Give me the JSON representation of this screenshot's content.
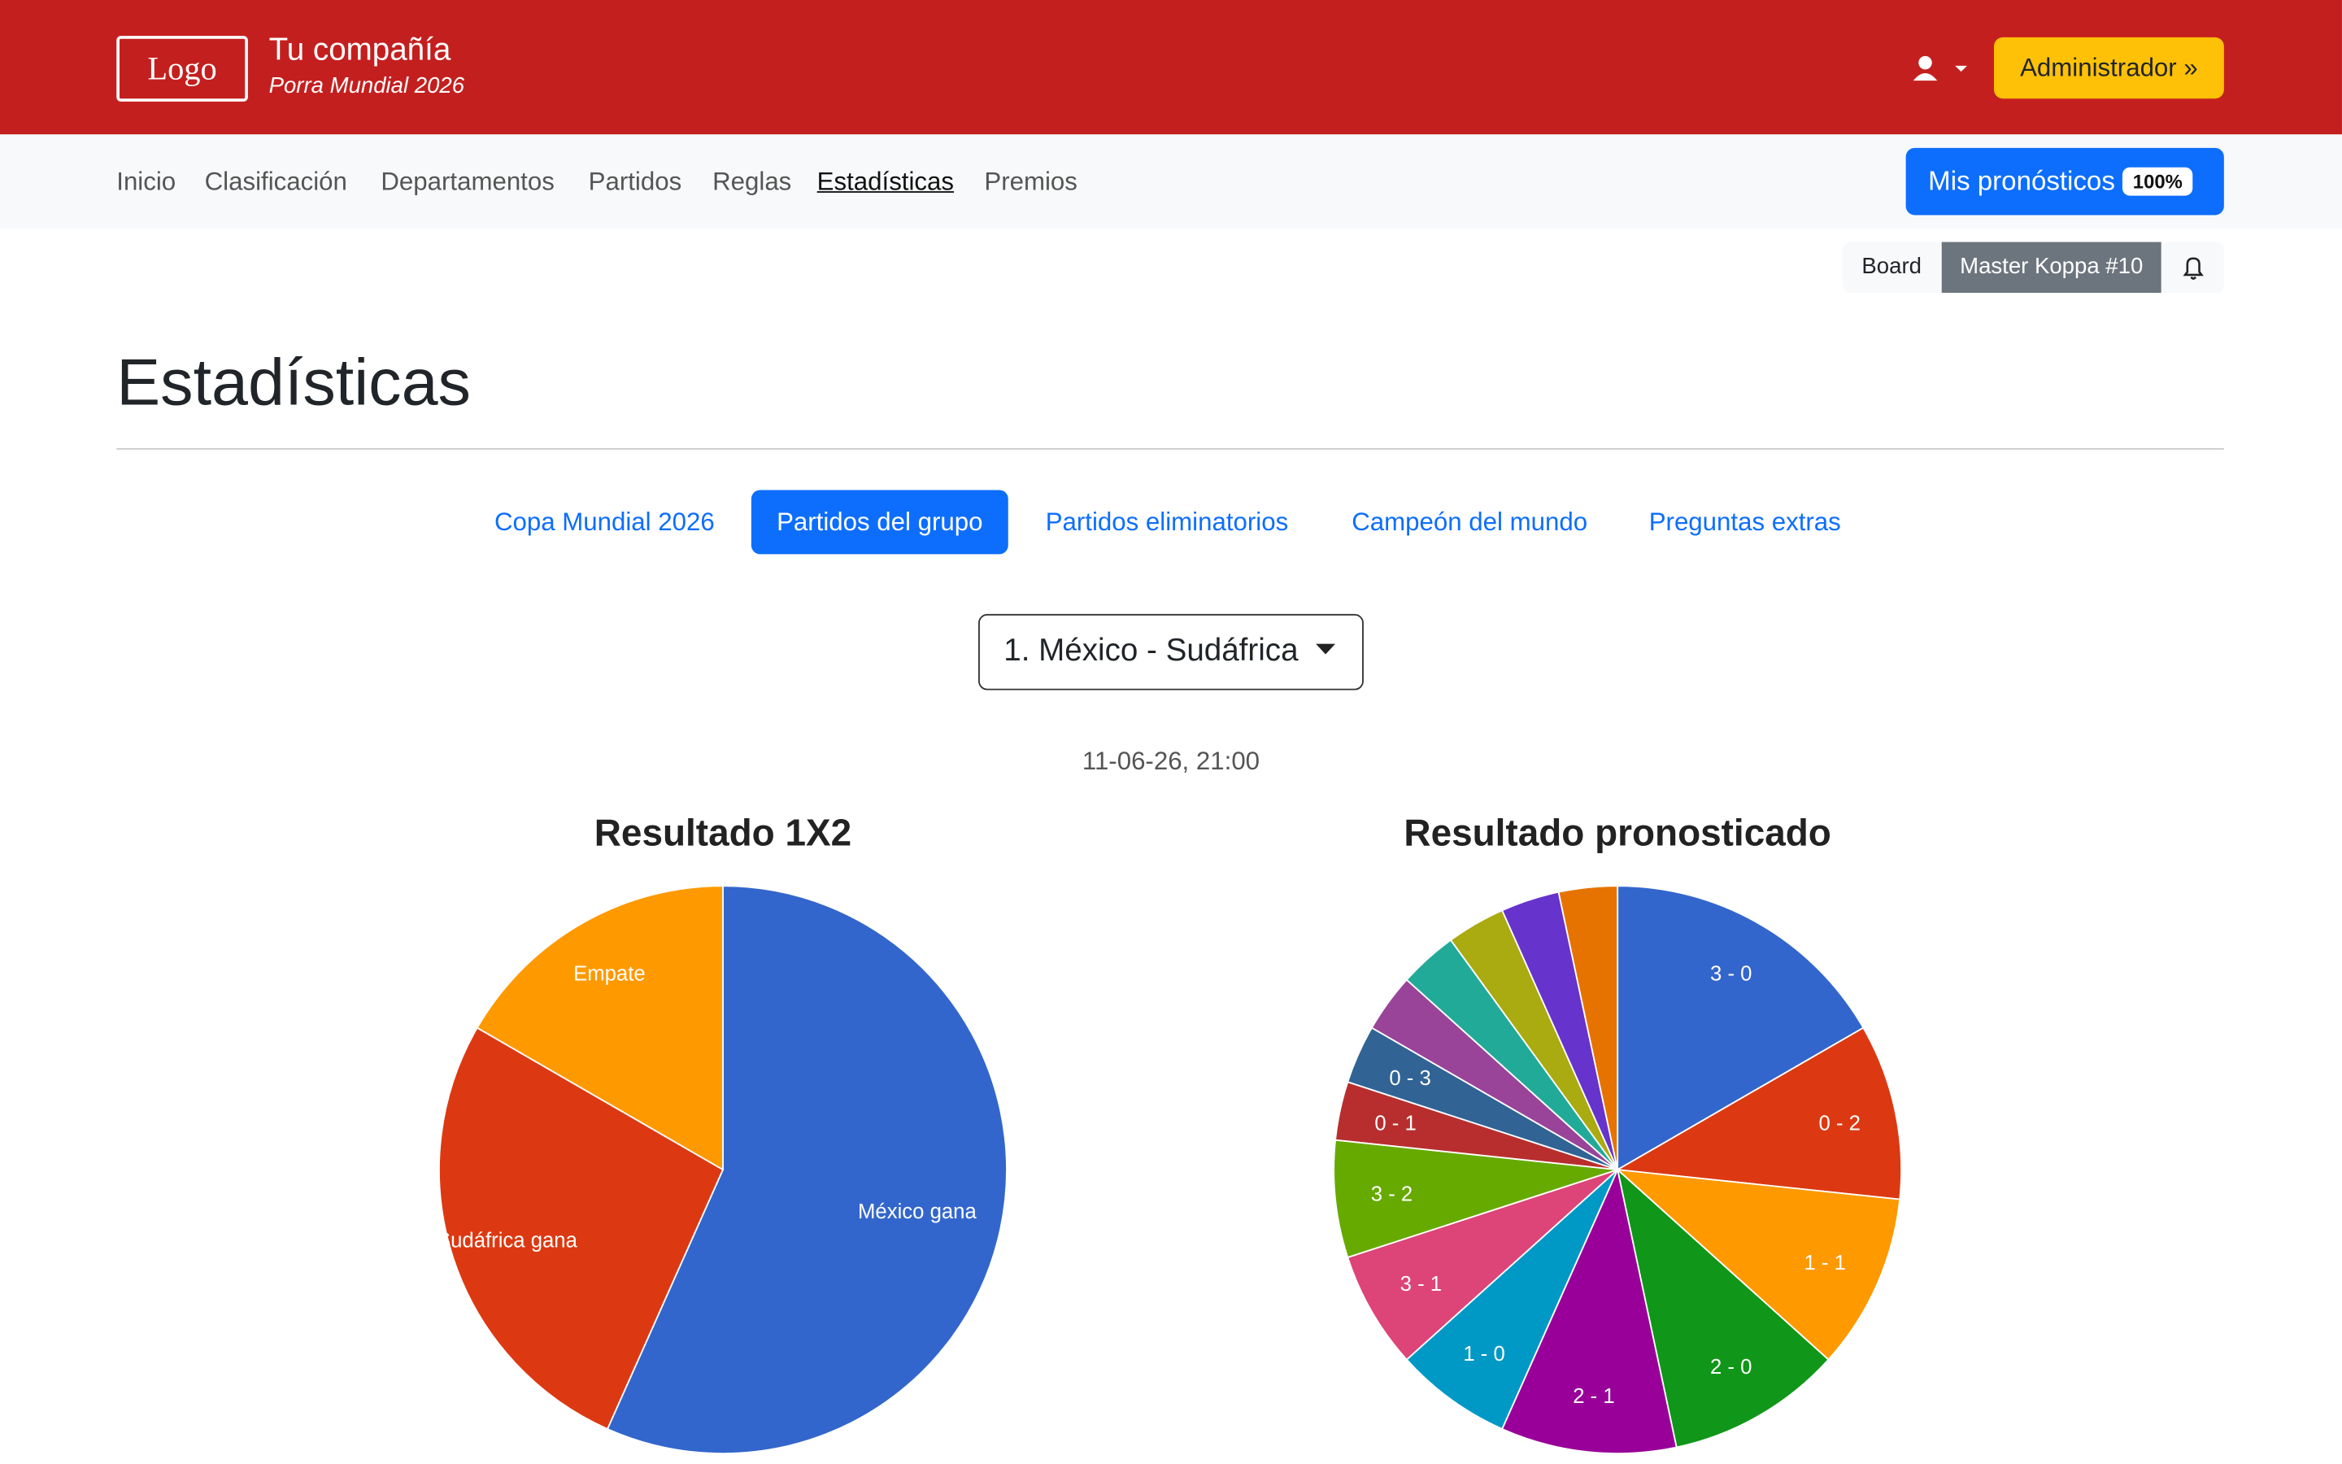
{
  "header": {
    "logo": "Logo",
    "company": "Tu compañía",
    "subtitle": "Porra Mundial 2026",
    "admin_button": "Administrador »"
  },
  "nav": {
    "links": [
      "Inicio",
      "Clasificación",
      "Departamentos",
      "Partidos",
      "Reglas",
      "Estadísticas",
      "Premios"
    ],
    "my_predictions": "Mis pronósticos",
    "badge": "100%"
  },
  "toolbar": {
    "board": "Board",
    "user": "Master Koppa #10"
  },
  "page": {
    "title": "Estadísticas",
    "tabs": [
      "Copa Mundial 2026",
      "Partidos del grupo",
      "Partidos eliminatorios",
      "Campeón del mundo",
      "Preguntas extras"
    ],
    "match": "1. México - Sudáfrica",
    "date": "11-06-26, 21:00"
  },
  "chart_data": [
    {
      "type": "pie",
      "title": "Resultado 1X2",
      "categories": [
        "México gana",
        "Sudáfrica gana",
        "Empate"
      ],
      "values": [
        17,
        8,
        5
      ],
      "colors": [
        "#3366cc",
        "#dc3912",
        "#ff9900"
      ]
    },
    {
      "type": "pie",
      "title": "Resultado pronosticado",
      "categories": [
        "3 - 0",
        "0 - 2",
        "1 - 1",
        "2 - 0",
        "2 - 1",
        "1 - 0",
        "3 - 1",
        "3 - 2",
        "0 - 1",
        "0 - 3",
        null,
        null,
        null,
        null,
        null
      ],
      "values": [
        5,
        3,
        3,
        3,
        3,
        2,
        2,
        2,
        1,
        1,
        1,
        1,
        1,
        1,
        1
      ],
      "colors": [
        "#3366cc",
        "#dc3912",
        "#ff9900",
        "#109618",
        "#990099",
        "#0099c6",
        "#dd4477",
        "#66aa00",
        "#b82e2e",
        "#316395",
        "#994499",
        "#22aa99",
        "#aaaa11",
        "#6633cc",
        "#e67300"
      ]
    }
  ]
}
